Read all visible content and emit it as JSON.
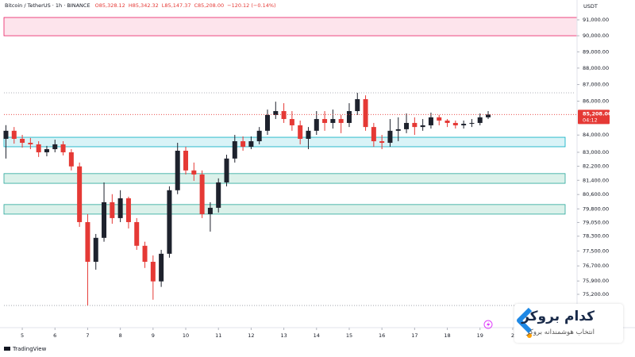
{
  "chart_data": {
    "type": "candlestick",
    "header": {
      "symbol": "Bitcoin / TetherUS · 1h · BINANCE",
      "values": [
        "O85,328.12",
        "H85,342.32",
        "L85,147.37",
        "C85,208.00",
        "−120.12 (−0.14%)"
      ]
    },
    "currency": "USDT",
    "last_price": {
      "value": 85208,
      "label": "85,208.00"
    },
    "countdown": "04:12",
    "up_color": "#1e222d",
    "down_color": "#e53935",
    "log_scale": true,
    "grid": false,
    "x": [
      4.5,
      4.75,
      5,
      5.25,
      5.5,
      5.75,
      6,
      6.25,
      6.5,
      6.75,
      7,
      7.25,
      7.5,
      7.75,
      8,
      8.25,
      8.5,
      8.75,
      9,
      9.25,
      9.5,
      9.75,
      10,
      10.25,
      10.5,
      10.75,
      11,
      11.25,
      11.5,
      11.75,
      12,
      12.25,
      12.5,
      12.75,
      13,
      13.25,
      13.5,
      13.75,
      14,
      14.25,
      14.5,
      14.75,
      15,
      15.25,
      15.5,
      15.75,
      16,
      16.25,
      16.5,
      16.75,
      17,
      17.25,
      17.5,
      17.75,
      18,
      18.25,
      18.5,
      18.75,
      19,
      19.25
    ],
    "open": [
      83780,
      84250,
      83780,
      83550,
      83460,
      83000,
      83180,
      83460,
      83000,
      82190,
      79070,
      76920,
      78210,
      80170,
      79290,
      80390,
      79070,
      77780,
      76920,
      75880,
      77350,
      80840,
      83090,
      81960,
      81730,
      79510,
      79860,
      81280,
      82640,
      83640,
      83320,
      83640,
      84250,
      85180,
      85410,
      84940,
      84570,
      83780,
      84250,
      84940,
      84710,
      84940,
      84710,
      85410,
      86120,
      84470,
      83640,
      83550,
      84250,
      84340,
      84710,
      84470,
      84570,
      85040,
      84850,
      84710,
      84570,
      84660,
      84710,
      85040
    ],
    "high": [
      84580,
      84470,
      84010,
      83830,
      83640,
      83370,
      83730,
      83640,
      83180,
      82410,
      79510,
      78420,
      81280,
      80620,
      80840,
      80480,
      79290,
      78000,
      77260,
      77560,
      81060,
      83550,
      83320,
      82410,
      81960,
      80170,
      81510,
      82860,
      84010,
      83920,
      83920,
      84470,
      85500,
      85970,
      85880,
      85410,
      84850,
      84470,
      85410,
      85410,
      85500,
      85180,
      85880,
      86500,
      86350,
      84710,
      84010,
      84940,
      85040,
      85270,
      85040,
      84940,
      85320,
      85180,
      84940,
      84850,
      84850,
      84940,
      85270,
      85410
    ],
    "low": [
      82640,
      83500,
      83270,
      83180,
      82730,
      82770,
      83000,
      82820,
      81960,
      78810,
      74620,
      76500,
      78000,
      78980,
      79070,
      78720,
      77560,
      76590,
      74920,
      75590,
      77140,
      80620,
      81730,
      81370,
      79290,
      78550,
      79600,
      81060,
      82410,
      83090,
      83180,
      83460,
      84010,
      84940,
      84710,
      84250,
      83460,
      83180,
      84010,
      84250,
      84380,
      84110,
      84470,
      85180,
      84250,
      83320,
      83180,
      83320,
      83640,
      84110,
      84010,
      84250,
      84380,
      84570,
      84470,
      84380,
      84380,
      84470,
      84570,
      84940
    ],
    "close": [
      84250,
      83780,
      83550,
      83460,
      83000,
      83180,
      83460,
      83000,
      82190,
      79070,
      76920,
      78210,
      80170,
      79290,
      80390,
      79070,
      77780,
      76920,
      75880,
      77350,
      80840,
      83090,
      81960,
      81730,
      79510,
      79860,
      81280,
      82640,
      83640,
      83320,
      83640,
      84250,
      85180,
      85410,
      84940,
      84570,
      83780,
      84250,
      84940,
      84710,
      84940,
      84710,
      85410,
      86120,
      84470,
      83640,
      83550,
      84250,
      84340,
      84710,
      84470,
      84570,
      85040,
      84850,
      84710,
      84570,
      84660,
      84710,
      85040,
      85208
    ],
    "zones": [
      {
        "low": 90000,
        "high": 91150,
        "color": "#fde4ec",
        "border": "#e91e63"
      },
      {
        "low": 83320,
        "high": 83870,
        "color": "#d9f3f7",
        "border": "#00acc1"
      },
      {
        "low": 81230,
        "high": 81780,
        "color": "#dbf1ea",
        "border": "#26a69a"
      },
      {
        "low": 79510,
        "high": 80040,
        "color": "#dbf1ea",
        "border": "#26a69a"
      }
    ],
    "levels": [
      86500,
      74620
    ],
    "xlim": [
      4.44,
      21.92
    ],
    "ylim": [
      73520,
      92060
    ],
    "xticks": [
      5,
      6,
      7,
      8,
      9,
      10,
      11,
      12,
      13,
      14,
      15,
      16,
      17,
      18,
      19,
      {
        "value": 20,
        "label": "2"
      }
    ],
    "yticks": [
      {
        "value": 91000,
        "label": "91,000.00"
      },
      {
        "value": 90000,
        "label": "90,000.00"
      },
      {
        "value": 89000,
        "label": "89,000.00"
      },
      {
        "value": 88000,
        "label": "88,000.00"
      },
      {
        "value": 87000,
        "label": "87,000.00"
      },
      {
        "value": 86000,
        "label": "86,000.00"
      },
      {
        "value": 84000,
        "label": "84,000.00"
      },
      {
        "value": 83000,
        "label": "83,000.00"
      },
      {
        "value": 82200,
        "label": "82,200.00"
      },
      {
        "value": 81400,
        "label": "81,400.00"
      },
      {
        "value": 80600,
        "label": "80,600.00"
      },
      {
        "value": 79800,
        "label": "79,800.00"
      },
      {
        "value": 79050,
        "label": "79,050.00"
      },
      {
        "value": 78300,
        "label": "78,300.00"
      },
      {
        "value": 77500,
        "label": "77,500.00"
      },
      {
        "value": 76700,
        "label": "76,700.00"
      },
      {
        "value": 75900,
        "label": "75,900.00"
      },
      {
        "value": 75200,
        "label": "75,200.00"
      }
    ]
  },
  "footer_logo": "TradingView",
  "watermark": {
    "brand": "کدام بروکر",
    "tagline": "انتخاب هوشمندانه بروکر"
  }
}
